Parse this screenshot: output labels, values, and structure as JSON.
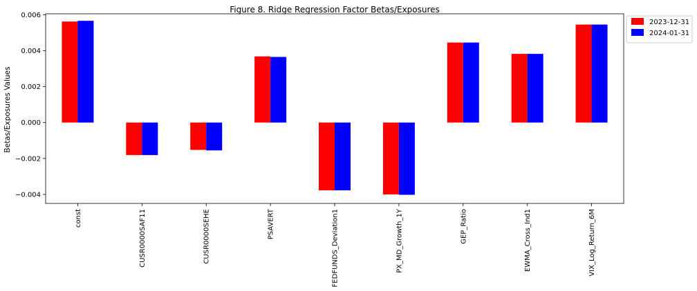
{
  "chart_data": {
    "type": "bar",
    "title": "Figure 8. Ridge Regression Factor Betas/Exposures",
    "xlabel": "",
    "ylabel": "Betas/Exposures Values",
    "categories": [
      "const",
      "CUSR0000SAF11",
      "CUSR0000SEHE",
      "PSAVERT",
      "FEDFUNDS_Deviation1",
      "PX_MD_Growth_1Y",
      "GEP_Ratio",
      "EWMA_Cross_Ind1",
      "VIX_Log_Return_6M"
    ],
    "series": [
      {
        "name": "2023-12-31",
        "color": "#ff0000",
        "values": [
          0.00562,
          -0.00181,
          -0.00152,
          0.00368,
          -0.00377,
          -0.004,
          0.00445,
          0.00382,
          0.00545
        ]
      },
      {
        "name": "2024-01-31",
        "color": "#0000ff",
        "values": [
          0.00566,
          -0.00181,
          -0.00155,
          0.00365,
          -0.00377,
          -0.00402,
          0.00445,
          0.00382,
          0.00545
        ]
      }
    ],
    "ylim": [
      -0.0045,
      0.00605
    ],
    "yticks": [
      -0.004,
      -0.002,
      0.0,
      0.002,
      0.004,
      0.006
    ],
    "ytick_labels": [
      "−0.004",
      "−0.002",
      "0.000",
      "0.002",
      "0.004",
      "0.006"
    ],
    "grid": false,
    "legend_position": "outside-top-right"
  }
}
